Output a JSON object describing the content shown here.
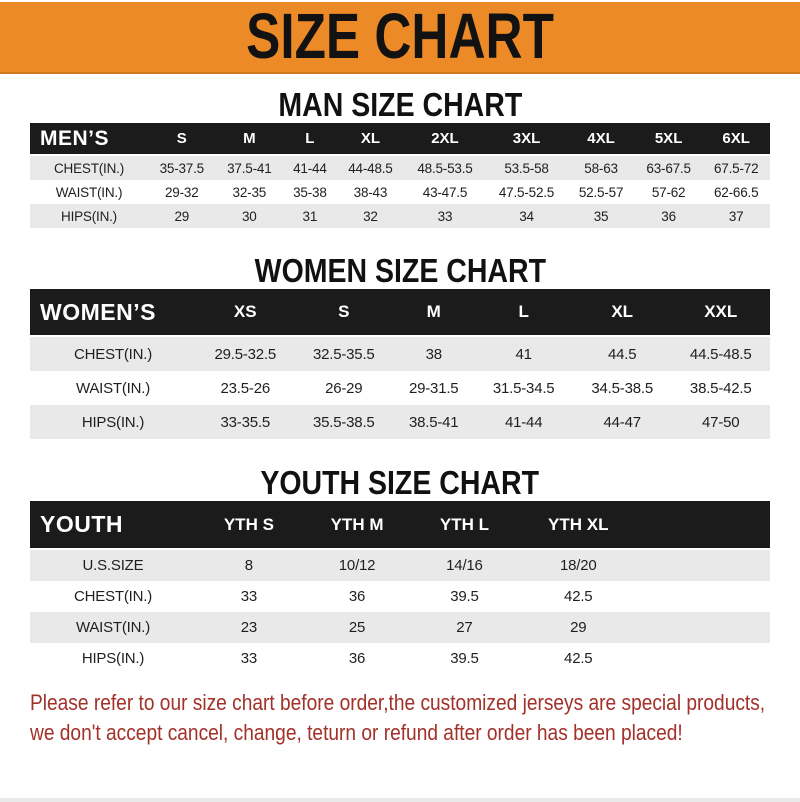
{
  "banner": {
    "title": "SIZE CHART"
  },
  "colors": {
    "banner_bg": "#EC8A28",
    "table_header_bg": "#1B1B1B",
    "row_stripe": "#E9E9E9",
    "note_red": "#A33029"
  },
  "sections": [
    {
      "title": "MAN SIZE CHART",
      "header_label": "MEN’S",
      "columns": [
        "S",
        "M",
        "L",
        "XL",
        "2XL",
        "3XL",
        "4XL",
        "5XL",
        "6XL"
      ],
      "rows": [
        {
          "label": "CHEST(IN.)",
          "values": [
            "35-37.5",
            "37.5-41",
            "41-44",
            "44-48.5",
            "48.5-53.5",
            "53.5-58",
            "58-63",
            "63-67.5",
            "67.5-72"
          ]
        },
        {
          "label": "WAIST(IN.)",
          "values": [
            "29-32",
            "32-35",
            "35-38",
            "38-43",
            "43-47.5",
            "47.5-52.5",
            "52.5-57",
            "57-62",
            "62-66.5"
          ]
        },
        {
          "label": "HIPS(IN.)",
          "values": [
            "29",
            "30",
            "31",
            "32",
            "33",
            "34",
            "35",
            "36",
            "37"
          ]
        }
      ]
    },
    {
      "title": "WOMEN SIZE CHART",
      "header_label": "WOMEN’S",
      "columns": [
        "XS",
        "S",
        "M",
        "L",
        "XL",
        "XXL"
      ],
      "rows": [
        {
          "label": "CHEST(IN.)",
          "values": [
            "29.5-32.5",
            "32.5-35.5",
            "38",
            "41",
            "44.5",
            "44.5-48.5"
          ]
        },
        {
          "label": "WAIST(IN.)",
          "values": [
            "23.5-26",
            "26-29",
            "29-31.5",
            "31.5-34.5",
            "34.5-38.5",
            "38.5-42.5"
          ]
        },
        {
          "label": "HIPS(IN.)",
          "values": [
            "33-35.5",
            "35.5-38.5",
            "38.5-41",
            "41-44",
            "44-47",
            "47-50"
          ]
        }
      ]
    },
    {
      "title": "YOUTH SIZE CHART",
      "header_label": "YOUTH",
      "columns": [
        "YTH S",
        "YTH M",
        "YTH L",
        "YTH XL"
      ],
      "rows": [
        {
          "label": "U.S.SIZE",
          "values": [
            "8",
            "10/12",
            "14/16",
            "18/20"
          ]
        },
        {
          "label": "CHEST(IN.)",
          "values": [
            "33",
            "36",
            "39.5",
            "42.5"
          ]
        },
        {
          "label": "WAIST(IN.)",
          "values": [
            "23",
            "25",
            "27",
            "29"
          ]
        },
        {
          "label": "HIPS(IN.)",
          "values": [
            "33",
            "36",
            "39.5",
            "42.5"
          ]
        }
      ]
    }
  ],
  "footer_note": {
    "line1": "Please refer to our size chart before order,the customized jerseys are special products,",
    "line2": "we don't accept cancel, change, teturn or refund after order has been placed!"
  }
}
